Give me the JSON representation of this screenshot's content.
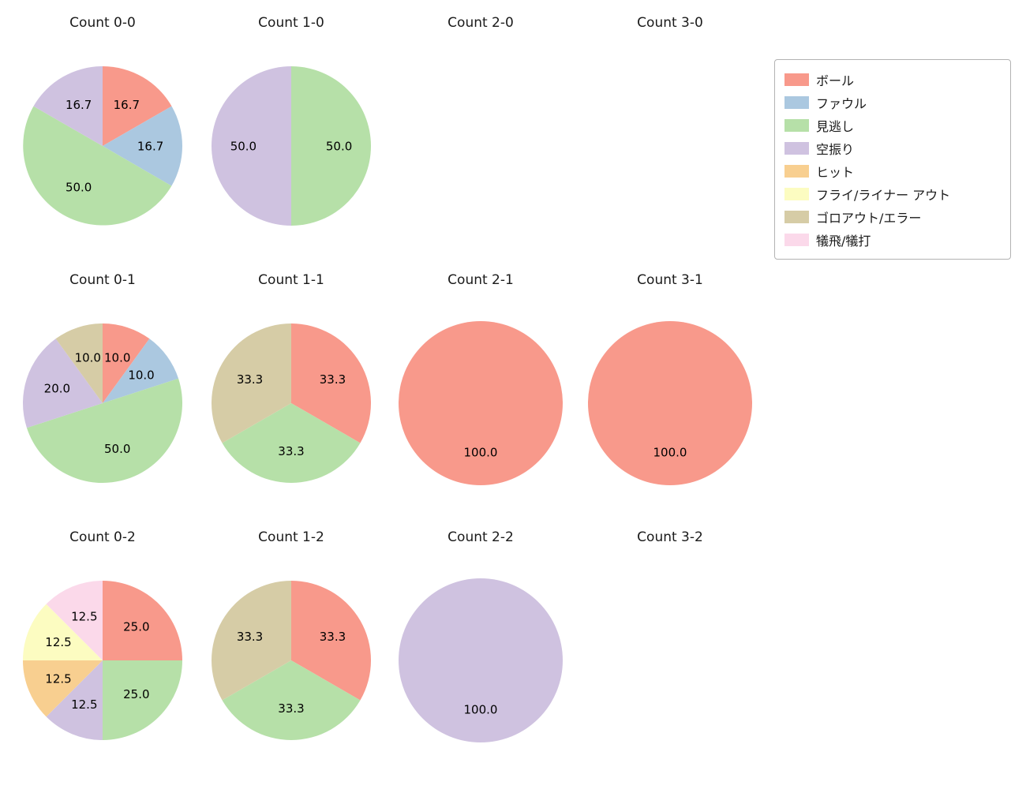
{
  "legend": {
    "items": [
      {
        "label": "ボール",
        "color": "#f8998b"
      },
      {
        "label": "ファウル",
        "color": "#abc8e0"
      },
      {
        "label": "見逃し",
        "color": "#b6e0a8"
      },
      {
        "label": "空振り",
        "color": "#cfc2e0"
      },
      {
        "label": "ヒット",
        "color": "#f8cf90"
      },
      {
        "label": "フライ/ライナー アウト",
        "color": "#fcfcc1"
      },
      {
        "label": "ゴロアウト/エラー",
        "color": "#d6cca6"
      },
      {
        "label": "犠飛/犠打",
        "color": "#fbd9ea"
      }
    ]
  },
  "chart_data": [
    {
      "type": "pie",
      "title": "Count 0-0",
      "slices": [
        {
          "name": "ボール",
          "value": 16.7,
          "color": "#f8998b"
        },
        {
          "name": "ファウル",
          "value": 16.7,
          "color": "#abc8e0"
        },
        {
          "name": "見逃し",
          "value": 50.0,
          "color": "#b6e0a8"
        },
        {
          "name": "空振り",
          "value": 16.7,
          "color": "#cfc2e0"
        }
      ]
    },
    {
      "type": "pie",
      "title": "Count 1-0",
      "slices": [
        {
          "name": "見逃し",
          "value": 50.0,
          "color": "#b6e0a8"
        },
        {
          "name": "空振り",
          "value": 50.0,
          "color": "#cfc2e0"
        }
      ]
    },
    {
      "type": "pie",
      "title": "Count 2-0",
      "slices": []
    },
    {
      "type": "pie",
      "title": "Count 3-0",
      "slices": []
    },
    {
      "type": "pie",
      "title": "Count 0-1",
      "slices": [
        {
          "name": "ボール",
          "value": 10.0,
          "color": "#f8998b"
        },
        {
          "name": "ファウル",
          "value": 10.0,
          "color": "#abc8e0"
        },
        {
          "name": "見逃し",
          "value": 50.0,
          "color": "#b6e0a8"
        },
        {
          "name": "空振り",
          "value": 20.0,
          "color": "#cfc2e0"
        },
        {
          "name": "ゴロアウト/エラー",
          "value": 10.0,
          "color": "#d6cca6"
        }
      ]
    },
    {
      "type": "pie",
      "title": "Count 1-1",
      "slices": [
        {
          "name": "ボール",
          "value": 33.3,
          "color": "#f8998b"
        },
        {
          "name": "見逃し",
          "value": 33.3,
          "color": "#b6e0a8"
        },
        {
          "name": "ゴロアウト/エラー",
          "value": 33.3,
          "color": "#d6cca6"
        }
      ]
    },
    {
      "type": "pie",
      "title": "Count 2-1",
      "slices": [
        {
          "name": "ボール",
          "value": 100.0,
          "color": "#f8998b"
        }
      ]
    },
    {
      "type": "pie",
      "title": "Count 3-1",
      "slices": [
        {
          "name": "ボール",
          "value": 100.0,
          "color": "#f8998b"
        }
      ]
    },
    {
      "type": "pie",
      "title": "Count 0-2",
      "slices": [
        {
          "name": "ボール",
          "value": 25.0,
          "color": "#f8998b"
        },
        {
          "name": "見逃し",
          "value": 25.0,
          "color": "#b6e0a8"
        },
        {
          "name": "空振り",
          "value": 12.5,
          "color": "#cfc2e0"
        },
        {
          "name": "ヒット",
          "value": 12.5,
          "color": "#f8cf90"
        },
        {
          "name": "フライ/ライナー アウト",
          "value": 12.5,
          "color": "#fcfcc1"
        },
        {
          "name": "犠飛/犠打",
          "value": 12.5,
          "color": "#fbd9ea"
        }
      ]
    },
    {
      "type": "pie",
      "title": "Count 1-2",
      "slices": [
        {
          "name": "ボール",
          "value": 33.3,
          "color": "#f8998b"
        },
        {
          "name": "見逃し",
          "value": 33.3,
          "color": "#b6e0a8"
        },
        {
          "name": "ゴロアウト/エラー",
          "value": 33.3,
          "color": "#d6cca6"
        }
      ]
    },
    {
      "type": "pie",
      "title": "Count 2-2",
      "slices": [
        {
          "name": "空振り",
          "value": 100.0,
          "color": "#cfc2e0"
        }
      ]
    },
    {
      "type": "pie",
      "title": "Count 3-2",
      "slices": []
    }
  ]
}
